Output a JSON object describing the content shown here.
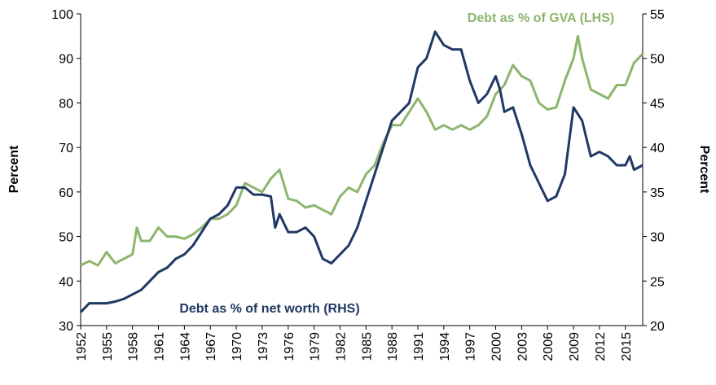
{
  "chart_data": {
    "type": "line",
    "y_label": "Percent",
    "y2_label": "Percent",
    "xlim": [
      1952,
      2017
    ],
    "xticks": [
      1952,
      1955,
      1958,
      1961,
      1964,
      1967,
      1970,
      1973,
      1976,
      1979,
      1982,
      1985,
      1988,
      1991,
      1994,
      1997,
      2000,
      2003,
      2006,
      2009,
      2012,
      2015
    ],
    "ylim": [
      30,
      100
    ],
    "yticks": [
      30,
      40,
      50,
      60,
      70,
      80,
      90,
      100
    ],
    "y2lim": [
      20,
      55
    ],
    "y2ticks": [
      20,
      25,
      30,
      35,
      40,
      45,
      50,
      55
    ],
    "series": [
      {
        "name": "Debt as % of GVA (LHS)",
        "color": "#8db56e",
        "axis": "y",
        "x": [
          1952,
          1953,
          1954,
          1955,
          1956,
          1957,
          1958,
          1958.5,
          1959,
          1960,
          1961,
          1962,
          1963,
          1964,
          1965,
          1966,
          1967,
          1968,
          1969,
          1970,
          1971,
          1972,
          1973,
          1974,
          1975,
          1976,
          1977,
          1978,
          1979,
          1980,
          1981,
          1982,
          1983,
          1984,
          1985,
          1986,
          1987,
          1988,
          1989,
          1990,
          1991,
          1992,
          1993,
          1994,
          1995,
          1996,
          1997,
          1998,
          1999,
          2000,
          2001,
          2002,
          2003,
          2004,
          2005,
          2006,
          2007,
          2008,
          2009,
          2009.5,
          2010,
          2011,
          2012,
          2013,
          2014,
          2015,
          2016,
          2017
        ],
        "values": [
          43.5,
          44.5,
          43.5,
          46.5,
          44,
          45,
          46,
          52,
          49,
          49,
          52,
          50,
          50,
          49.5,
          50.5,
          52,
          54,
          54,
          55,
          57,
          62,
          61,
          60,
          63,
          65,
          58.5,
          58,
          56.5,
          57,
          56,
          55,
          59,
          61,
          60,
          64,
          66,
          71,
          75,
          75,
          78,
          81,
          78,
          74,
          75,
          74,
          75,
          74,
          75,
          77,
          82,
          84,
          88.5,
          86,
          85,
          80,
          78.5,
          79,
          85,
          90,
          95,
          90,
          83,
          82,
          81,
          84,
          84,
          89,
          91
        ]
      },
      {
        "name": "Debt as % of net worth  (RHS)",
        "color": "#1f3864",
        "axis": "y2",
        "x": [
          1952,
          1953,
          1954,
          1955,
          1956,
          1957,
          1958,
          1959,
          1960,
          1961,
          1962,
          1963,
          1964,
          1965,
          1966,
          1967,
          1968,
          1969,
          1970,
          1971,
          1972,
          1973,
          1974,
          1974.5,
          1975,
          1976,
          1977,
          1978,
          1979,
          1980,
          1981,
          1982,
          1983,
          1984,
          1985,
          1986,
          1987,
          1988,
          1989,
          1990,
          1991,
          1992,
          1993,
          1994,
          1995,
          1996,
          1997,
          1998,
          1999,
          2000,
          2000.5,
          2001,
          2002,
          2003,
          2004,
          2005,
          2006,
          2007,
          2008,
          2009,
          2010,
          2011,
          2012,
          2013,
          2014,
          2015,
          2015.5,
          2016,
          2017
        ],
        "values": [
          21.5,
          22.5,
          22.5,
          22.5,
          22.7,
          23,
          23.5,
          24,
          25,
          26,
          26.5,
          27.5,
          28,
          29,
          30.5,
          32,
          32.5,
          33.5,
          35.5,
          35.5,
          34.7,
          34.7,
          34.5,
          31,
          32.5,
          30.5,
          30.5,
          31,
          30,
          27.5,
          27,
          28,
          29,
          31,
          34,
          37,
          40,
          43,
          44,
          45,
          49,
          50,
          53,
          51.5,
          51,
          51,
          47.5,
          45,
          46,
          48,
          46.5,
          44,
          44.5,
          41.5,
          38,
          36,
          34,
          34.5,
          37,
          44.5,
          43,
          39,
          39.5,
          39,
          38,
          38,
          39,
          37.5,
          38
        ]
      }
    ]
  }
}
